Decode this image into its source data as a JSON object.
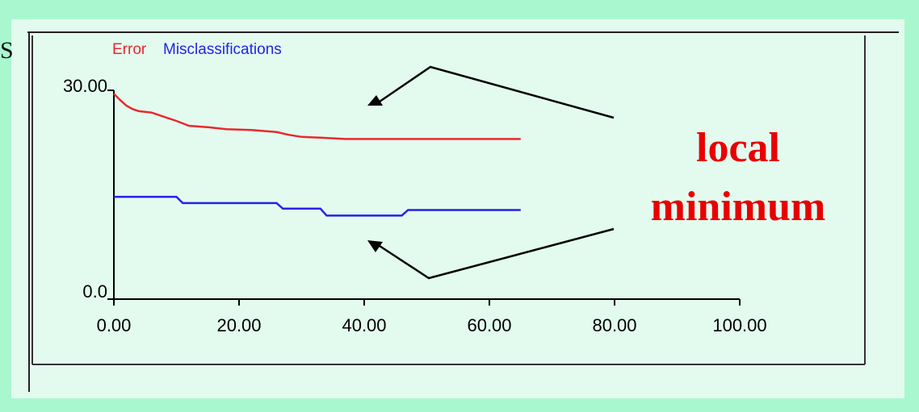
{
  "edge_text": "S",
  "legend": {
    "error_label": "Error",
    "misclass_label": "Misclassifications",
    "error_color": "#e8292f",
    "misclass_color": "#2323e6"
  },
  "annotation": {
    "line1": "local",
    "line2": "minimum",
    "color": "#e80000"
  },
  "chart_data": {
    "type": "line",
    "xlim": [
      0,
      100
    ],
    "ylim": [
      0,
      30
    ],
    "x_ticks": [
      "0.00",
      "20.00",
      "40.00",
      "60.00",
      "80.00",
      "100.00"
    ],
    "x_tick_values": [
      0,
      20,
      40,
      60,
      80,
      100
    ],
    "y_ticks": [
      "0.0",
      "30.00"
    ],
    "y_tick_values": [
      0,
      30
    ],
    "grid": false,
    "series": [
      {
        "name": "Error",
        "color": "#e8292f",
        "points": [
          [
            0,
            29.5
          ],
          [
            1,
            28.6
          ],
          [
            2,
            27.8
          ],
          [
            3,
            27.3
          ],
          [
            4,
            27.0
          ],
          [
            6,
            26.8
          ],
          [
            8,
            26.2
          ],
          [
            10,
            25.6
          ],
          [
            12,
            24.9
          ],
          [
            15,
            24.7
          ],
          [
            18,
            24.4
          ],
          [
            22,
            24.3
          ],
          [
            26,
            24.0
          ],
          [
            28,
            23.6
          ],
          [
            30,
            23.3
          ],
          [
            33,
            23.2
          ],
          [
            37,
            23.0
          ],
          [
            45,
            23.0
          ],
          [
            55,
            23.0
          ],
          [
            65,
            23.0
          ]
        ]
      },
      {
        "name": "Misclassifications",
        "color": "#2323e6",
        "points": [
          [
            0,
            14.7
          ],
          [
            10,
            14.7
          ],
          [
            11,
            13.8
          ],
          [
            26,
            13.8
          ],
          [
            27,
            13.0
          ],
          [
            33,
            13.0
          ],
          [
            34,
            12.0
          ],
          [
            46,
            12.0
          ],
          [
            47,
            12.8
          ],
          [
            65,
            12.8
          ]
        ]
      }
    ]
  }
}
